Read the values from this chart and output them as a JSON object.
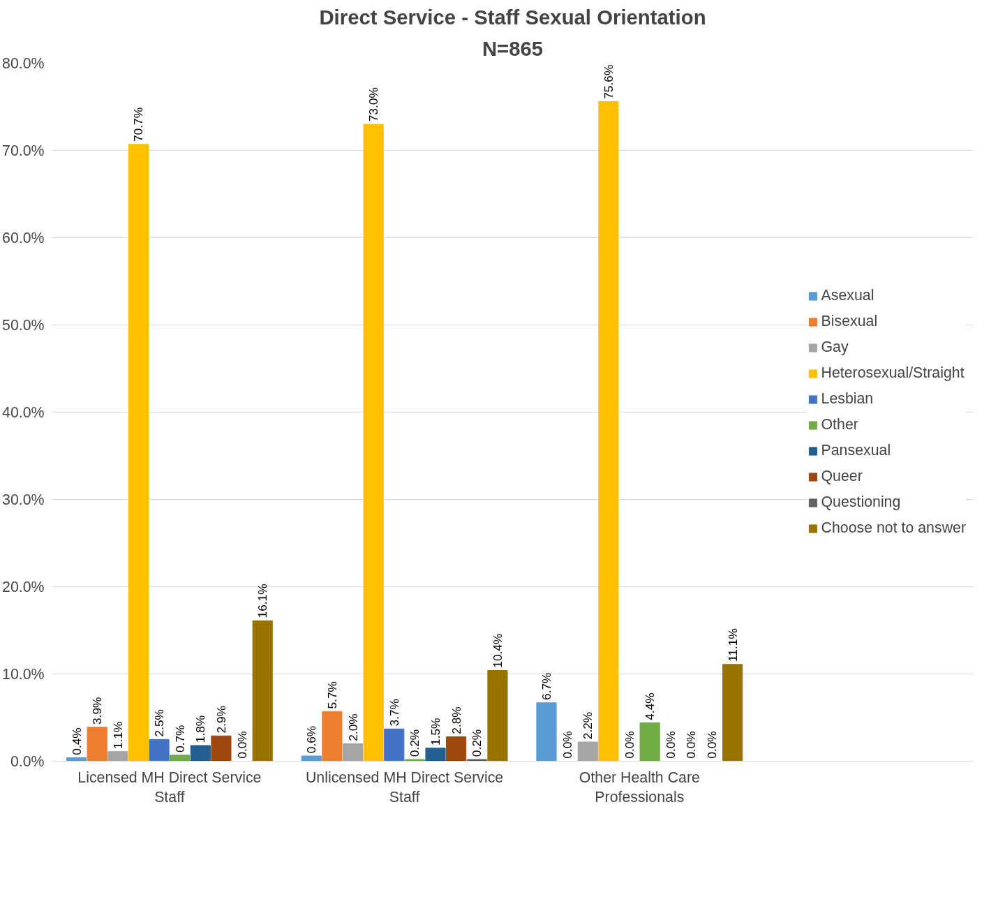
{
  "chart_data": {
    "type": "bar",
    "title": "Direct Service - Staff Sexual Orientation",
    "subtitle": "N=865",
    "categories": [
      "Licensed MH Direct Service Staff",
      "Unlicensed MH Direct Service Staff",
      "Other Health Care Professionals"
    ],
    "ylim": [
      0,
      80
    ],
    "yticks": [
      {
        "value": 0,
        "label": "0.0%"
      },
      {
        "value": 10,
        "label": "10.0%"
      },
      {
        "value": 20,
        "label": "20.0%"
      },
      {
        "value": 30,
        "label": "30.0%"
      },
      {
        "value": 40,
        "label": "40.0%"
      },
      {
        "value": 50,
        "label": "50.0%"
      },
      {
        "value": 60,
        "label": "60.0%"
      },
      {
        "value": 70,
        "label": "70.0%"
      },
      {
        "value": 80,
        "label": "80.0%"
      }
    ],
    "grid": "y",
    "legend": "right",
    "series": [
      {
        "name": "Asexual",
        "color": "#5b9bd5",
        "values": [
          0.4,
          0.6,
          6.7
        ],
        "value_labels": [
          "0.4%",
          "0.6%",
          "6.7%"
        ]
      },
      {
        "name": "Bisexual",
        "color": "#ed7d31",
        "values": [
          3.9,
          5.7,
          0.0
        ],
        "value_labels": [
          "3.9%",
          "5.7%",
          "0.0%"
        ]
      },
      {
        "name": "Gay",
        "color": "#a5a5a5",
        "values": [
          1.1,
          2.0,
          2.2
        ],
        "value_labels": [
          "1.1%",
          "2.0%",
          "2.2%"
        ]
      },
      {
        "name": "Heterosexual/Straight",
        "color": "#ffc000",
        "values": [
          70.7,
          73.0,
          75.6
        ],
        "value_labels": [
          "70.7%",
          "73.0%",
          "75.6%"
        ]
      },
      {
        "name": "Lesbian",
        "color": "#4472c4",
        "values": [
          2.5,
          3.7,
          0.0
        ],
        "value_labels": [
          "2.5%",
          "3.7%",
          "0.0%"
        ]
      },
      {
        "name": "Other",
        "color": "#70ad47",
        "values": [
          0.7,
          0.2,
          4.4
        ],
        "value_labels": [
          "0.7%",
          "0.2%",
          "4.4%"
        ]
      },
      {
        "name": "Pansexual",
        "color": "#255e91",
        "values": [
          1.8,
          1.5,
          0.0
        ],
        "value_labels": [
          "1.8%",
          "1.5%",
          "0.0%"
        ]
      },
      {
        "name": "Queer",
        "color": "#9e480e",
        "values": [
          2.9,
          2.8,
          0.0
        ],
        "value_labels": [
          "2.9%",
          "2.8%",
          "0.0%"
        ]
      },
      {
        "name": "Questioning",
        "color": "#636363",
        "values": [
          0.0,
          0.2,
          0.0
        ],
        "value_labels": [
          "0.0%",
          "0.2%",
          "0.0%"
        ]
      },
      {
        "name": "Choose not to answer",
        "color": "#997300",
        "values": [
          16.1,
          10.4,
          11.1
        ],
        "value_labels": [
          "16.1%",
          "10.4%",
          "11.1%"
        ]
      }
    ]
  }
}
